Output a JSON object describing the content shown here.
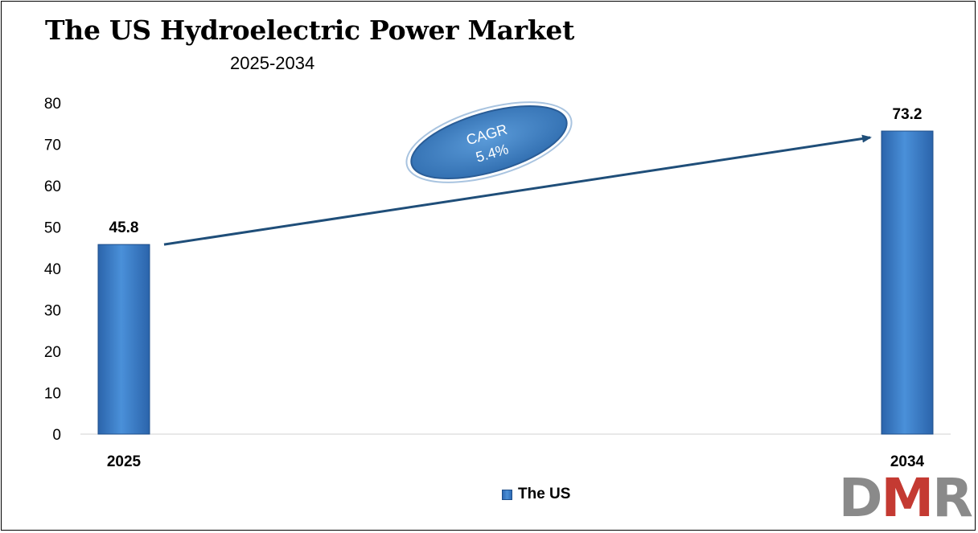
{
  "chart_data": {
    "type": "bar",
    "title": "The US Hydroelectric Power Market",
    "subtitle": "2025-2034",
    "categories": [
      "2025",
      "2034"
    ],
    "series": [
      {
        "name": "The US",
        "values": [
          45.8,
          73.2
        ],
        "color": "#3a7dc9"
      }
    ],
    "data_labels": [
      "45.8",
      "73.2"
    ],
    "ylim": [
      0,
      80
    ],
    "yticks": [
      "0",
      "10",
      "20",
      "30",
      "40",
      "50",
      "60",
      "70",
      "80"
    ],
    "grid": false,
    "legend": "bottom",
    "annotation": {
      "line1": "CAGR",
      "line2": "5.4%"
    }
  },
  "logo": {
    "d": "D",
    "m": "M",
    "r": "R"
  },
  "colors": {
    "bar": "#3a7dc9",
    "arrow": "#1f4e79",
    "ellipse": "#3e7fc4",
    "logo_gray": "#8a8a8a",
    "logo_red": "#c43a32"
  }
}
